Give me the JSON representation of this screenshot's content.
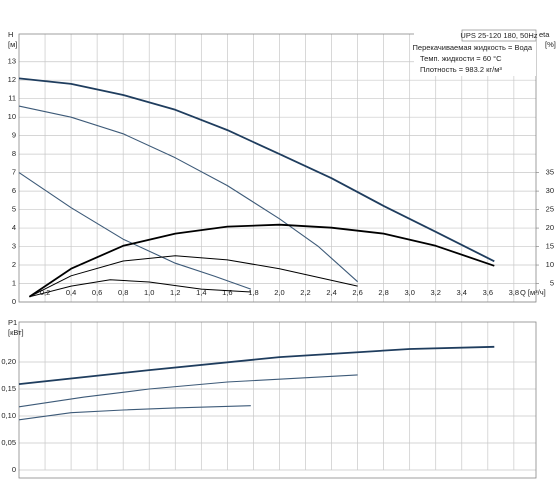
{
  "header": {
    "model": "UPS 25-120 180, 50Hz",
    "liquid": "Перекачиваемая жидкость = Вода",
    "temperature": "Темп. жидкости = 60 °C",
    "density": "Плотность = 983.2 кг/м³"
  },
  "chart_data": [
    {
      "type": "line",
      "ylabel": "H",
      "yunit": "[м]",
      "y2label": "eta",
      "y2unit": "[%]",
      "xlabel": "Q [м³/ч]",
      "xlim": [
        0,
        3.97
      ],
      "ylim": [
        0,
        14.5
      ],
      "y2lim": [
        0,
        72.5
      ],
      "grid": true,
      "xticks": [
        {
          "value": 0.2,
          "label": "0,2"
        },
        {
          "value": 0.4,
          "label": "0,4"
        },
        {
          "value": 0.6,
          "label": "0,6"
        },
        {
          "value": 0.8,
          "label": "0,8"
        },
        {
          "value": 1.0,
          "label": "1,0"
        },
        {
          "value": 1.2,
          "label": "1,2"
        },
        {
          "value": 1.4,
          "label": "1,4"
        },
        {
          "value": 1.6,
          "label": "1,6"
        },
        {
          "value": 1.8,
          "label": "1,8"
        },
        {
          "value": 2.0,
          "label": "2,0"
        },
        {
          "value": 2.2,
          "label": "2,2"
        },
        {
          "value": 2.4,
          "label": "2,4"
        },
        {
          "value": 2.6,
          "label": "2,6"
        },
        {
          "value": 2.8,
          "label": "2,8"
        },
        {
          "value": 3.0,
          "label": "3,0"
        },
        {
          "value": 3.2,
          "label": "3,2"
        },
        {
          "value": 3.4,
          "label": "3,4"
        },
        {
          "value": 3.6,
          "label": "3,6"
        },
        {
          "value": 3.8,
          "label": "3,8"
        }
      ],
      "yticks": [
        0,
        1,
        2,
        3,
        4,
        5,
        6,
        7,
        8,
        9,
        10,
        11,
        12,
        13
      ],
      "y2ticks": [
        5,
        10,
        15,
        20,
        25,
        30,
        35
      ],
      "series": [
        {
          "color": "#1f3d5e",
          "width": 1.8,
          "x": [
            0,
            0.4,
            0.8,
            1.2,
            1.6,
            2.0,
            2.4,
            2.8,
            3.2,
            3.65
          ],
          "values": [
            12.1,
            11.8,
            11.2,
            10.4,
            9.3,
            8.0,
            6.7,
            5.2,
            3.8,
            2.2
          ]
        },
        {
          "color": "#3d5a78",
          "width": 1.1,
          "x": [
            0,
            0.4,
            0.8,
            1.2,
            1.6,
            2.0,
            2.3,
            2.6
          ],
          "values": [
            10.6,
            10.0,
            9.1,
            7.8,
            6.3,
            4.5,
            3.0,
            1.1
          ]
        },
        {
          "color": "#3d5a78",
          "width": 1.1,
          "x": [
            0,
            0.4,
            0.8,
            1.2,
            1.5,
            1.78
          ],
          "values": [
            7.0,
            5.1,
            3.4,
            2.1,
            1.4,
            0.7
          ]
        },
        {
          "color": "#000000",
          "width": 1.8,
          "axis": "y2",
          "x": [
            0.08,
            0.4,
            0.8,
            1.2,
            1.6,
            2.0,
            2.4,
            2.8,
            3.2,
            3.65
          ],
          "values": [
            1.4,
            9.0,
            15.2,
            18.5,
            20.4,
            20.9,
            20.1,
            18.5,
            15.2,
            9.8
          ]
        },
        {
          "color": "#000000",
          "width": 1.0,
          "axis": "y2",
          "x": [
            0.08,
            0.4,
            0.8,
            1.2,
            1.6,
            2.0,
            2.6
          ],
          "values": [
            1.4,
            7.1,
            11.1,
            12.5,
            11.4,
            9.0,
            4.3
          ]
        },
        {
          "color": "#000000",
          "width": 1.0,
          "axis": "y2",
          "x": [
            0.08,
            0.4,
            0.7,
            1.0,
            1.4,
            1.78
          ],
          "values": [
            1.4,
            4.3,
            6.0,
            5.4,
            3.5,
            2.7
          ]
        }
      ]
    },
    {
      "type": "line",
      "ylabel": "P1",
      "yunit": "[кВт]",
      "xlim": [
        0,
        3.97
      ],
      "ylim": [
        0,
        0.274
      ],
      "grid": true,
      "yticks": [
        0,
        {
          "value": 0.05,
          "label": "0,05"
        },
        {
          "value": 0.1,
          "label": "0,10"
        },
        {
          "value": 0.15,
          "label": "0,15"
        },
        {
          "value": 0.2,
          "label": "0,20"
        }
      ],
      "series": [
        {
          "color": "#1f3d5e",
          "width": 1.8,
          "x": [
            0,
            1,
            2,
            3,
            3.65
          ],
          "values": [
            0.159,
            0.185,
            0.209,
            0.224,
            0.228
          ]
        },
        {
          "color": "#3d5a78",
          "width": 1.1,
          "x": [
            0,
            0.5,
            1,
            1.6,
            2.6
          ],
          "values": [
            0.117,
            0.135,
            0.15,
            0.163,
            0.176
          ]
        },
        {
          "color": "#3d5a78",
          "width": 1.1,
          "x": [
            0,
            0.4,
            0.8,
            1.2,
            1.78
          ],
          "values": [
            0.093,
            0.106,
            0.111,
            0.115,
            0.119
          ]
        }
      ]
    }
  ]
}
